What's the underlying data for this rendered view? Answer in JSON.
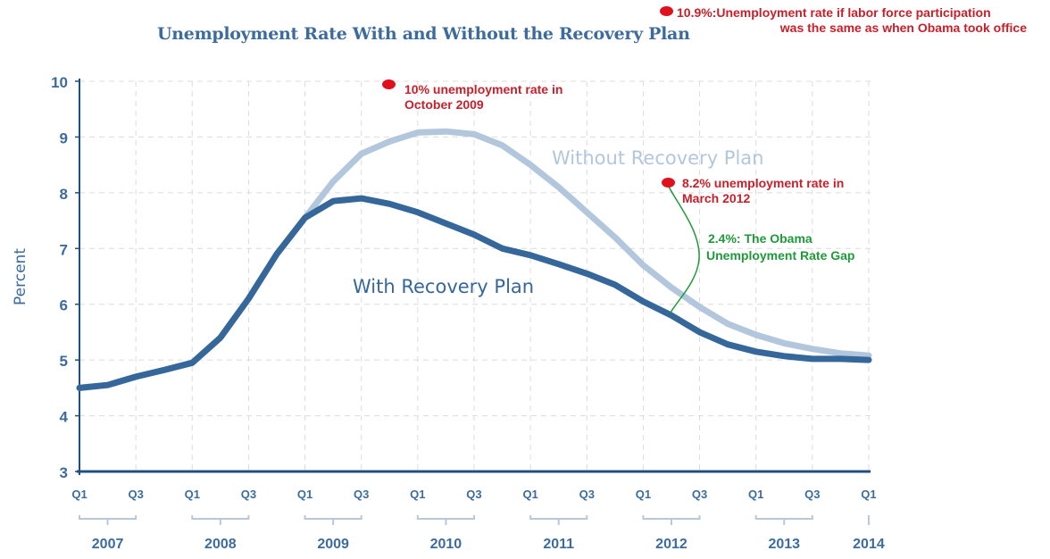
{
  "chart_data": {
    "type": "line",
    "title": "Unemployment Rate With and Without the Recovery Plan",
    "ylabel": "Percent",
    "xlabel": "",
    "ylim": [
      3,
      10
    ],
    "yticks": [
      "3",
      "4",
      "5",
      "6",
      "7",
      "8",
      "9",
      "10"
    ],
    "grid": true,
    "x_tick_labels": [
      "Q1",
      "Q3",
      "Q1",
      "Q3",
      "Q1",
      "Q3",
      "Q1",
      "Q3",
      "Q1",
      "Q3",
      "Q1",
      "Q3",
      "Q1",
      "Q3",
      "Q1"
    ],
    "year_labels": [
      "2007",
      "2008",
      "2009",
      "2010",
      "2011",
      "2012",
      "2013",
      "2014"
    ],
    "x": [
      "2007Q1",
      "2007Q2",
      "2007Q3",
      "2007Q4",
      "2008Q1",
      "2008Q2",
      "2008Q3",
      "2008Q4",
      "2009Q1",
      "2009Q2",
      "2009Q3",
      "2009Q4",
      "2010Q1",
      "2010Q2",
      "2010Q3",
      "2010Q4",
      "2011Q1",
      "2011Q2",
      "2011Q3",
      "2011Q4",
      "2012Q1",
      "2012Q2",
      "2012Q3",
      "2012Q4",
      "2013Q1",
      "2013Q2",
      "2013Q3",
      "2013Q4",
      "2014Q1"
    ],
    "series": [
      {
        "name": "Without Recovery Plan",
        "color": "#b3c7dc",
        "values": [
          4.5,
          4.55,
          4.7,
          4.82,
          4.95,
          5.4,
          6.1,
          6.9,
          7.55,
          8.2,
          8.7,
          8.92,
          9.08,
          9.1,
          9.05,
          8.85,
          8.5,
          8.1,
          7.65,
          7.2,
          6.7,
          6.3,
          5.95,
          5.65,
          5.45,
          5.3,
          5.2,
          5.12,
          5.08
        ]
      },
      {
        "name": "With Recovery Plan",
        "color": "#36679a",
        "values": [
          4.5,
          4.55,
          4.7,
          4.82,
          4.95,
          5.4,
          6.1,
          6.9,
          7.55,
          7.85,
          7.9,
          7.8,
          7.65,
          7.45,
          7.25,
          7.0,
          6.88,
          6.72,
          6.55,
          6.35,
          6.05,
          5.8,
          5.5,
          5.28,
          5.15,
          5.07,
          5.02,
          5.02,
          5.0
        ]
      }
    ]
  },
  "annotations": {
    "participation": [
      "10.9%:Unemployment rate if labor force participation",
      "was the same as when Obama took office"
    ],
    "october": [
      "10% unemployment rate in",
      "October 2009"
    ],
    "march": [
      "8.2% unemployment rate in",
      "March 2012"
    ],
    "gap": [
      "2.4%: The Obama",
      "Unemployment Rate Gap"
    ],
    "red_color": "#c8202a",
    "green_color": "#1f9a3a"
  }
}
